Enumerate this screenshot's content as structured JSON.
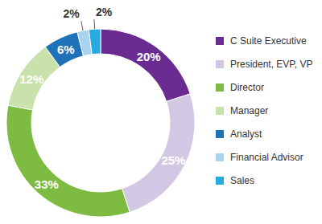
{
  "chart_data": {
    "type": "pie",
    "categories": [
      "C Suite Executive",
      "President, EVP, VP",
      "Director",
      "Manager",
      "Analyst",
      "Financial Advisor",
      "Sales"
    ],
    "values": [
      20,
      25,
      33,
      12,
      6,
      2,
      2
    ],
    "value_labels": [
      "20%",
      "25%",
      "33%",
      "12%",
      "6%",
      "2%",
      "2%"
    ],
    "colors": [
      "#6a2c91",
      "#d3c8e3",
      "#7dbb42",
      "#c9e2ab",
      "#1f72b8",
      "#a8d3f1",
      "#29a9e1"
    ],
    "data_labels": true,
    "legend": "right"
  }
}
